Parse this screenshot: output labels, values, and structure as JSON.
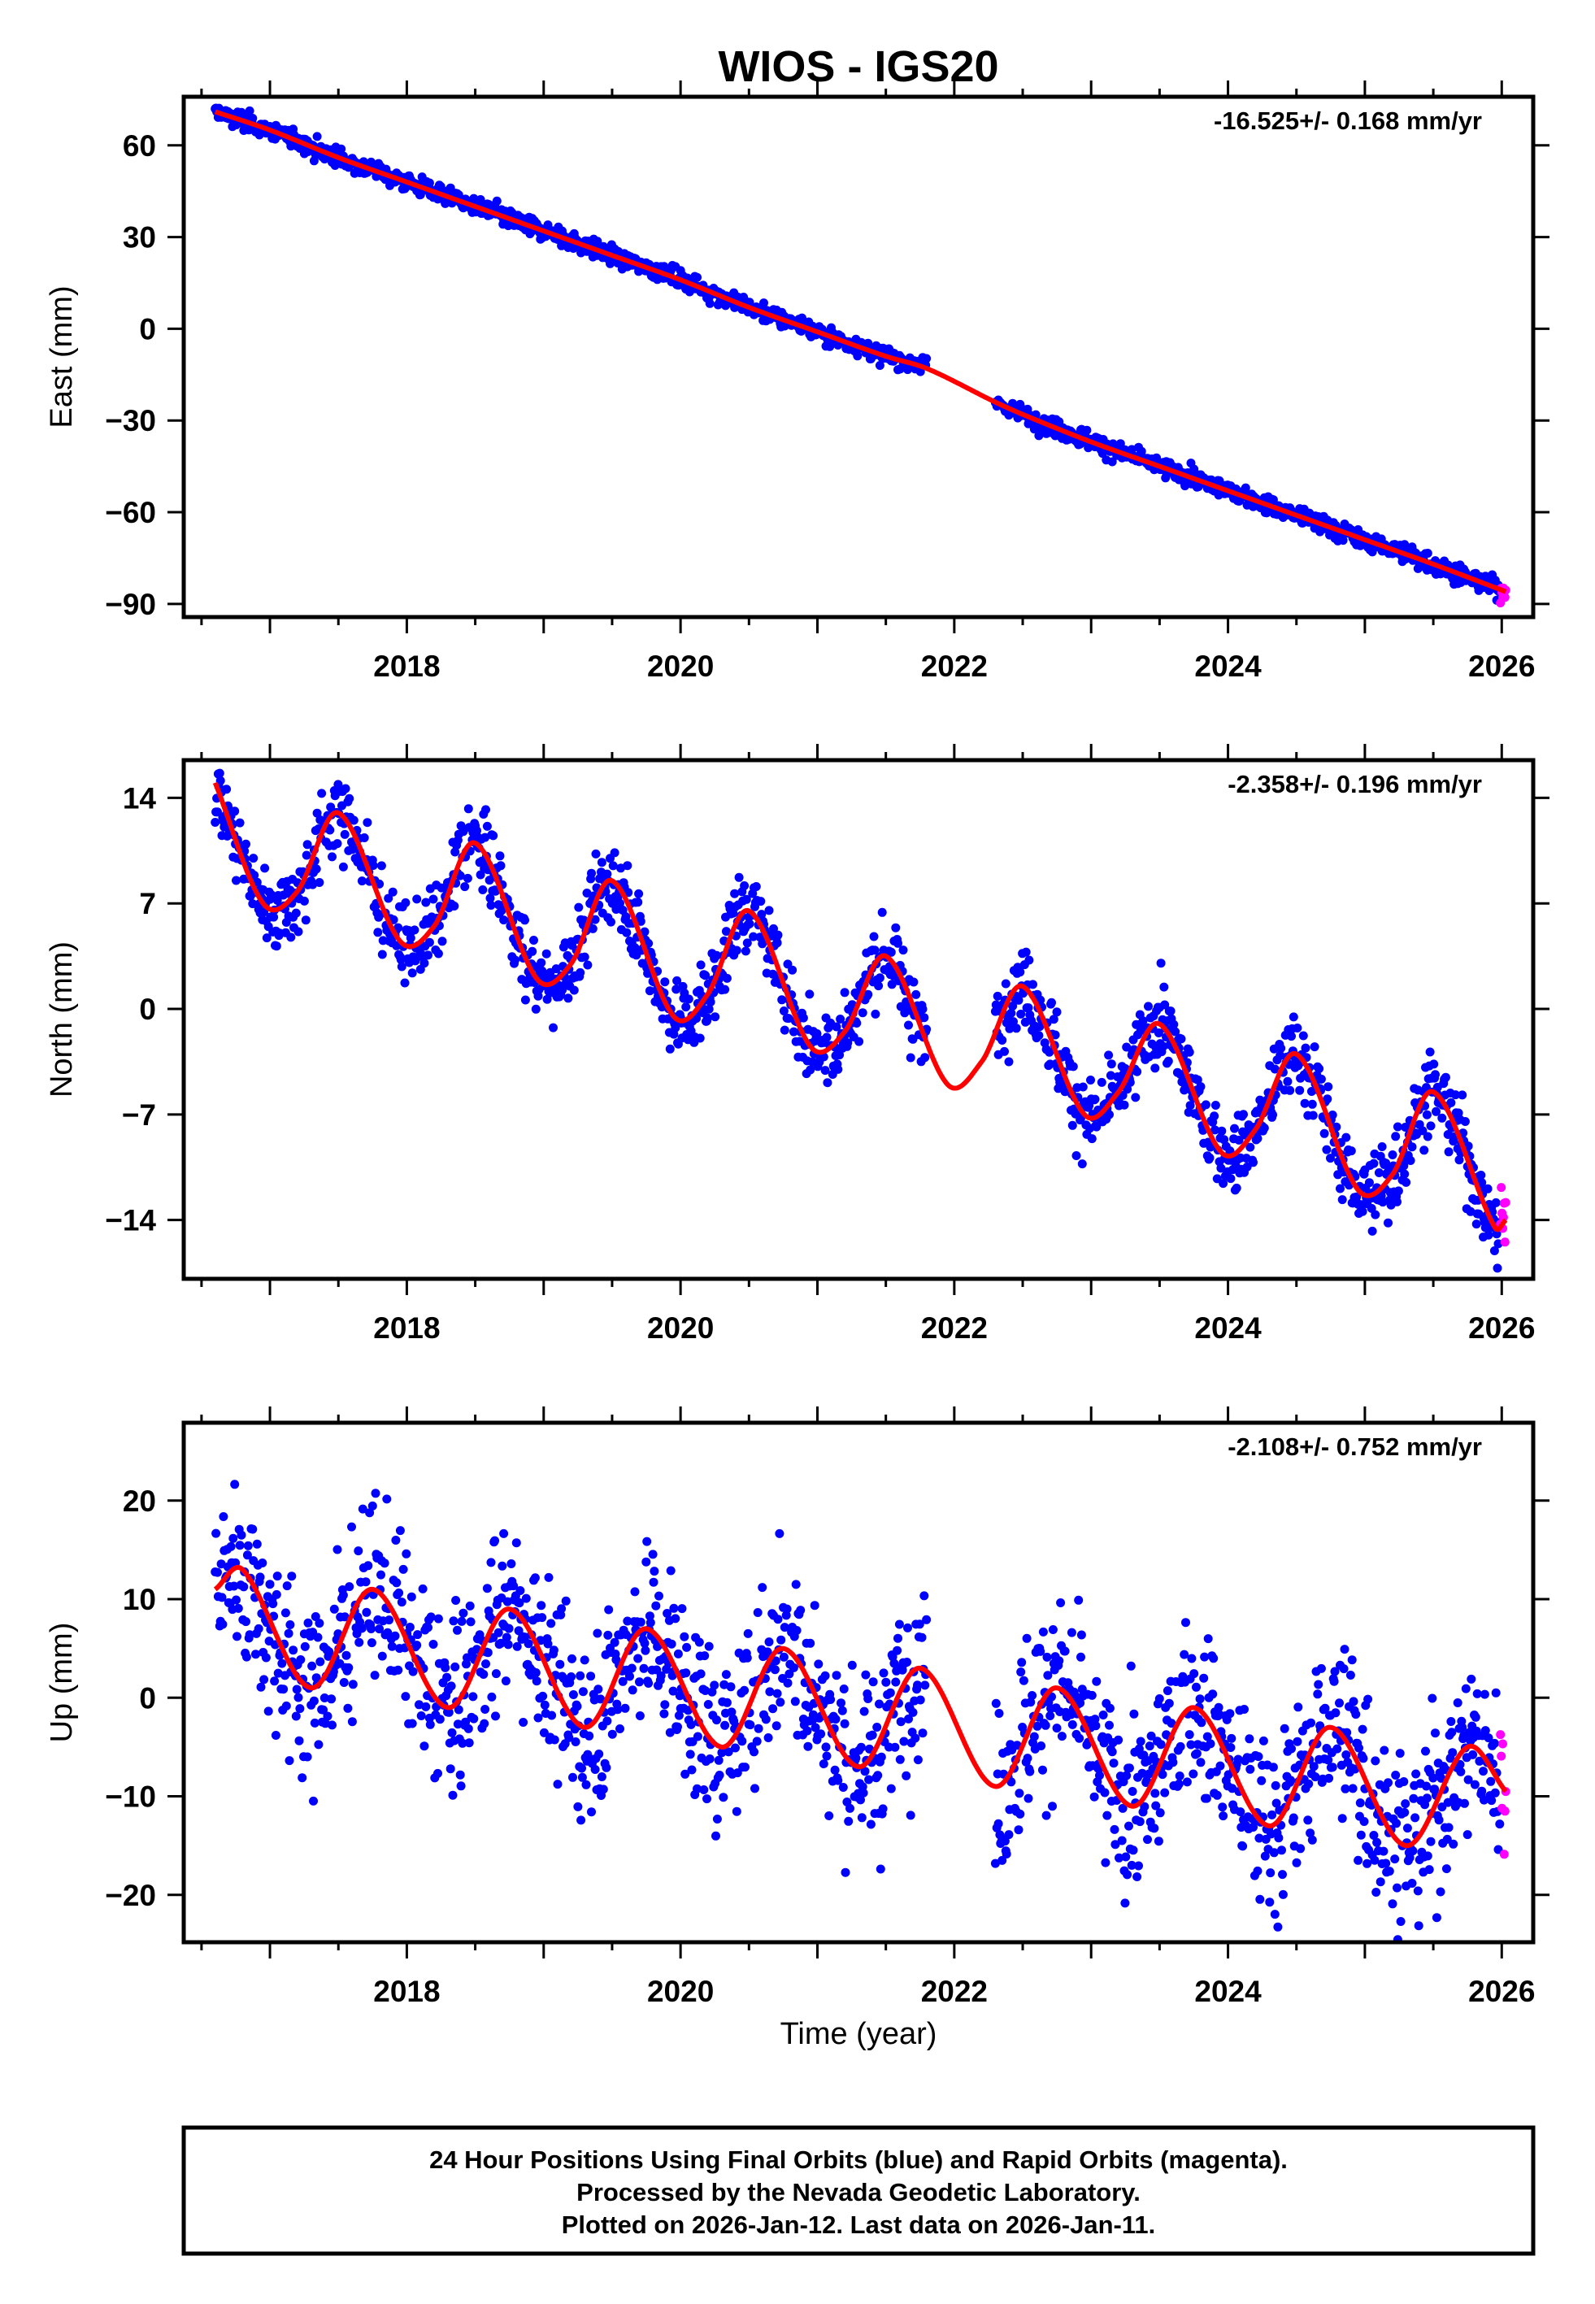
{
  "chart_data": {
    "type": "scatter",
    "title": "WIOS - IGS20",
    "xlabel": "Time (year)",
    "xlim": [
      2016.37,
      2026.23
    ],
    "xticks": [
      2018,
      2020,
      2022,
      2024,
      2026
    ],
    "colors": {
      "final": "#0000ff",
      "rapid": "#ff00ff",
      "fit": "#ff0000"
    },
    "data_start": 2016.6,
    "data_end": 2026.03,
    "rapid_start": 2025.99,
    "gap": [
      2021.8,
      2022.3
    ],
    "panels": [
      {
        "name": "east",
        "ylabel": "East (mm)",
        "rate_text": "-16.525+/- 0.168 mm/yr",
        "ylim": [
          -94.3,
          75.9
        ],
        "yticks": [
          60,
          30,
          0,
          -30,
          -60,
          -90
        ],
        "ytick_labels": [
          "60",
          "30",
          "0",
          "−30",
          "−60",
          "−90"
        ],
        "noise_sigma": 1.5,
        "fit": [
          [
            2016.6,
            71
          ],
          [
            2017.0,
            65
          ],
          [
            2017.5,
            56
          ],
          [
            2018.0,
            48
          ],
          [
            2018.5,
            40
          ],
          [
            2019.0,
            32
          ],
          [
            2019.5,
            24
          ],
          [
            2020.0,
            16
          ],
          [
            2020.5,
            7
          ],
          [
            2021.0,
            -1
          ],
          [
            2021.5,
            -9
          ],
          [
            2021.8,
            -13
          ],
          [
            2022.3,
            -24
          ],
          [
            2022.5,
            -28
          ],
          [
            2023.0,
            -37
          ],
          [
            2023.5,
            -45
          ],
          [
            2024.0,
            -53
          ],
          [
            2024.5,
            -61
          ],
          [
            2025.0,
            -69
          ],
          [
            2025.5,
            -77
          ],
          [
            2026.03,
            -86
          ]
        ]
      },
      {
        "name": "north",
        "ylabel": "North (mm)",
        "rate_text": "-2.358+/- 0.196 mm/yr",
        "ylim": [
          -17.9,
          16.5
        ],
        "yticks": [
          14,
          7,
          0,
          -7,
          -14
        ],
        "ytick_labels": [
          "14",
          "7",
          "0",
          "−7",
          "−14"
        ],
        "noise_sigma": 1.3,
        "fit": [
          [
            2016.6,
            15
          ],
          [
            2016.95,
            7
          ],
          [
            2017.2,
            7.8
          ],
          [
            2017.5,
            13
          ],
          [
            2017.95,
            4.5
          ],
          [
            2018.2,
            5.5
          ],
          [
            2018.5,
            11
          ],
          [
            2018.95,
            2
          ],
          [
            2019.2,
            3
          ],
          [
            2019.5,
            8.5
          ],
          [
            2019.95,
            -0.5
          ],
          [
            2020.2,
            1
          ],
          [
            2020.5,
            6.5
          ],
          [
            2020.95,
            -2.5
          ],
          [
            2021.2,
            -1.5
          ],
          [
            2021.5,
            3.5
          ],
          [
            2021.95,
            -5
          ],
          [
            2022.2,
            -3.5
          ],
          [
            2022.5,
            1.5
          ],
          [
            2022.95,
            -7
          ],
          [
            2023.2,
            -5.5
          ],
          [
            2023.5,
            -1
          ],
          [
            2023.95,
            -9.5
          ],
          [
            2024.2,
            -8
          ],
          [
            2024.5,
            -3
          ],
          [
            2024.95,
            -12
          ],
          [
            2025.2,
            -11
          ],
          [
            2025.5,
            -5.5
          ],
          [
            2025.95,
            -14.5
          ],
          [
            2026.03,
            -14
          ]
        ]
      },
      {
        "name": "up",
        "ylabel": "Up (mm)",
        "rate_text": "-2.108+/- 0.752 mm/yr",
        "ylim": [
          -24.8,
          27.9
        ],
        "yticks": [
          20,
          10,
          0,
          -10,
          -20
        ],
        "ytick_labels": [
          "20",
          "10",
          "0",
          "−10",
          "−20"
        ],
        "noise_sigma": 4.5,
        "fit": [
          [
            2016.6,
            11
          ],
          [
            2016.8,
            13
          ],
          [
            2017.3,
            1
          ],
          [
            2017.75,
            11
          ],
          [
            2018.3,
            -1
          ],
          [
            2018.75,
            9
          ],
          [
            2019.3,
            -3
          ],
          [
            2019.75,
            7
          ],
          [
            2020.3,
            -5
          ],
          [
            2020.75,
            5
          ],
          [
            2021.3,
            -7
          ],
          [
            2021.75,
            3
          ],
          [
            2022.3,
            -9
          ],
          [
            2022.75,
            1
          ],
          [
            2023.3,
            -11
          ],
          [
            2023.75,
            -1
          ],
          [
            2024.3,
            -13
          ],
          [
            2024.75,
            -3
          ],
          [
            2025.3,
            -15
          ],
          [
            2025.75,
            -5
          ],
          [
            2026.03,
            -9.5
          ]
        ]
      }
    ]
  },
  "footer": {
    "line1": "24 Hour Positions Using Final Orbits (blue) and Rapid Orbits (magenta).",
    "line2": "Processed by the Nevada Geodetic Laboratory.",
    "line3": "Plotted on 2026-Jan-12. Last data on 2026-Jan-11."
  }
}
